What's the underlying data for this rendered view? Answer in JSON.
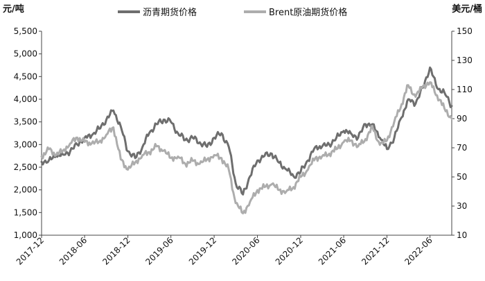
{
  "chart_data": {
    "type": "line",
    "y_left_unit": "元/吨",
    "y_right_unit": "美元/桶",
    "x_ticks": [
      "2017-12",
      "2018-06",
      "2018-12",
      "2019-06",
      "2019-12",
      "2020-06",
      "2020-12",
      "2021-06",
      "2021-12",
      "2022-06"
    ],
    "y_left_ticks": [
      "1,000",
      "1,500",
      "2,000",
      "2,500",
      "3,000",
      "3,500",
      "4,000",
      "4,500",
      "5,000",
      "5,500"
    ],
    "y_right_ticks": [
      "10",
      "30",
      "50",
      "70",
      "90",
      "110",
      "130",
      "150"
    ],
    "y_left_lim": [
      1000,
      5500
    ],
    "y_right_lim": [
      10,
      150
    ],
    "x_lim": [
      "2017-12-01",
      "2022-09-01"
    ],
    "grid": false,
    "legend_position": "top",
    "series": [
      {
        "name": "沥青期货价格",
        "axis": "left",
        "color": "#6e6e6e",
        "x": [
          "2017-12-01",
          "2018-01-01",
          "2018-02-01",
          "2018-03-01",
          "2018-04-01",
          "2018-05-01",
          "2018-06-01",
          "2018-07-01",
          "2018-08-01",
          "2018-09-01",
          "2018-10-01",
          "2018-11-01",
          "2018-12-01",
          "2019-01-01",
          "2019-02-01",
          "2019-03-01",
          "2019-04-01",
          "2019-05-01",
          "2019-06-01",
          "2019-07-01",
          "2019-08-01",
          "2019-09-01",
          "2019-10-01",
          "2019-11-01",
          "2019-12-01",
          "2020-01-01",
          "2020-02-01",
          "2020-03-01",
          "2020-04-01",
          "2020-05-01",
          "2020-06-01",
          "2020-07-01",
          "2020-08-01",
          "2020-09-01",
          "2020-10-01",
          "2020-11-01",
          "2020-12-01",
          "2021-01-01",
          "2021-02-01",
          "2021-03-01",
          "2021-04-01",
          "2021-05-01",
          "2021-06-01",
          "2021-07-01",
          "2021-08-01",
          "2021-09-01",
          "2021-10-01",
          "2021-11-01",
          "2021-12-01",
          "2022-01-01",
          "2022-02-01",
          "2022-03-01",
          "2022-04-01",
          "2022-05-01",
          "2022-06-01",
          "2022-07-01",
          "2022-08-01",
          "2022-09-01"
        ],
        "values": [
          2620,
          2650,
          2750,
          2780,
          2850,
          3000,
          3150,
          3200,
          3350,
          3550,
          3750,
          3400,
          2850,
          2700,
          2950,
          3250,
          3450,
          3550,
          3500,
          3250,
          3100,
          3150,
          3050,
          2950,
          3150,
          3250,
          2950,
          2150,
          1900,
          2300,
          2650,
          2750,
          2800,
          2600,
          2450,
          2300,
          2400,
          2650,
          2950,
          2950,
          3000,
          3150,
          3300,
          3250,
          3150,
          3450,
          3450,
          3150,
          2900,
          3150,
          3600,
          4000,
          3900,
          4250,
          4700,
          4250,
          4150,
          3850
        ]
      },
      {
        "name": "Brent原油期货价格",
        "axis": "right",
        "color": "#adadad",
        "x": [
          "2017-12-01",
          "2018-01-01",
          "2018-02-01",
          "2018-03-01",
          "2018-04-01",
          "2018-05-01",
          "2018-06-01",
          "2018-07-01",
          "2018-08-01",
          "2018-09-01",
          "2018-10-01",
          "2018-11-01",
          "2018-12-01",
          "2019-01-01",
          "2019-02-01",
          "2019-03-01",
          "2019-04-01",
          "2019-05-01",
          "2019-06-01",
          "2019-07-01",
          "2019-08-01",
          "2019-09-01",
          "2019-10-01",
          "2019-11-01",
          "2019-12-01",
          "2020-01-01",
          "2020-02-01",
          "2020-03-01",
          "2020-04-01",
          "2020-05-01",
          "2020-06-01",
          "2020-07-01",
          "2020-08-01",
          "2020-09-01",
          "2020-10-01",
          "2020-11-01",
          "2020-12-01",
          "2021-01-01",
          "2021-02-01",
          "2021-03-01",
          "2021-04-01",
          "2021-05-01",
          "2021-06-01",
          "2021-07-01",
          "2021-08-01",
          "2021-09-01",
          "2021-10-01",
          "2021-11-01",
          "2021-12-01",
          "2022-01-01",
          "2022-02-01",
          "2022-03-01",
          "2022-04-01",
          "2022-05-01",
          "2022-06-01",
          "2022-07-01",
          "2022-08-01",
          "2022-09-01"
        ],
        "values": [
          64,
          69,
          65,
          68,
          73,
          77,
          74,
          73,
          74,
          79,
          84,
          62,
          55,
          60,
          65,
          67,
          71,
          68,
          63,
          64,
          59,
          61,
          59,
          62,
          65,
          63,
          55,
          32,
          25,
          33,
          41,
          43,
          45,
          41,
          40,
          43,
          50,
          55,
          63,
          64,
          66,
          69,
          74,
          75,
          71,
          76,
          84,
          72,
          75,
          88,
          100,
          113,
          105,
          112,
          115,
          106,
          97,
          90
        ]
      }
    ]
  }
}
